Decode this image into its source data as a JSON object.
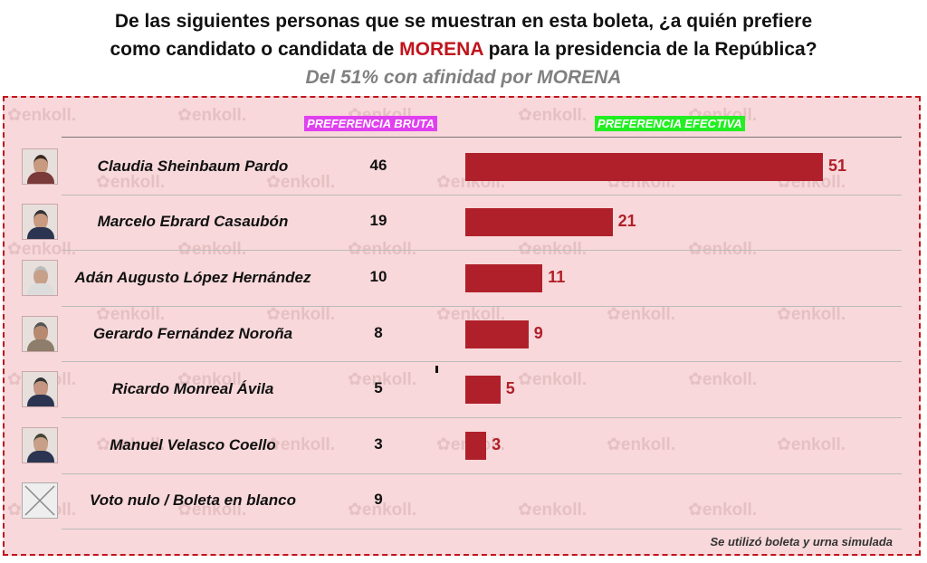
{
  "title": {
    "line1": "De las siguientes personas que se muestran en esta boleta, ¿a quién prefiere",
    "line2_pre": "como candidato o candidata de ",
    "line2_hl": "MORENA",
    "line2_post": " para la presidencia de la República?"
  },
  "subtitle": "Del 51% con afinidad por MORENA",
  "watermark": "enkoll.",
  "footnote": "Se utilizó boleta y urna simulada",
  "colors": {
    "bar": "#b0202a",
    "panel": "#f8d8da",
    "title_highlight": "#c0141c"
  },
  "chart_data": {
    "type": "bar",
    "headers": {
      "bruta": "PREFERENCIA BRUTA",
      "efectiva": "PREFERENCIA EFECTIVA"
    },
    "categories": [
      "Claudia Sheinbaum Pardo",
      "Marcelo Ebrard Casaubón",
      "Adán Augusto López Hernández",
      "Gerardo Fernández Noroña",
      "Ricardo Monreal Ávila",
      "Manuel Velasco Coello",
      "Voto nulo / Boleta en blanco"
    ],
    "bruta": [
      "46",
      "19",
      "10",
      "8",
      "5",
      "3",
      "9"
    ],
    "efectiva": [
      51,
      21,
      11,
      9,
      5,
      3,
      null
    ],
    "xlim": [
      0,
      51
    ]
  }
}
